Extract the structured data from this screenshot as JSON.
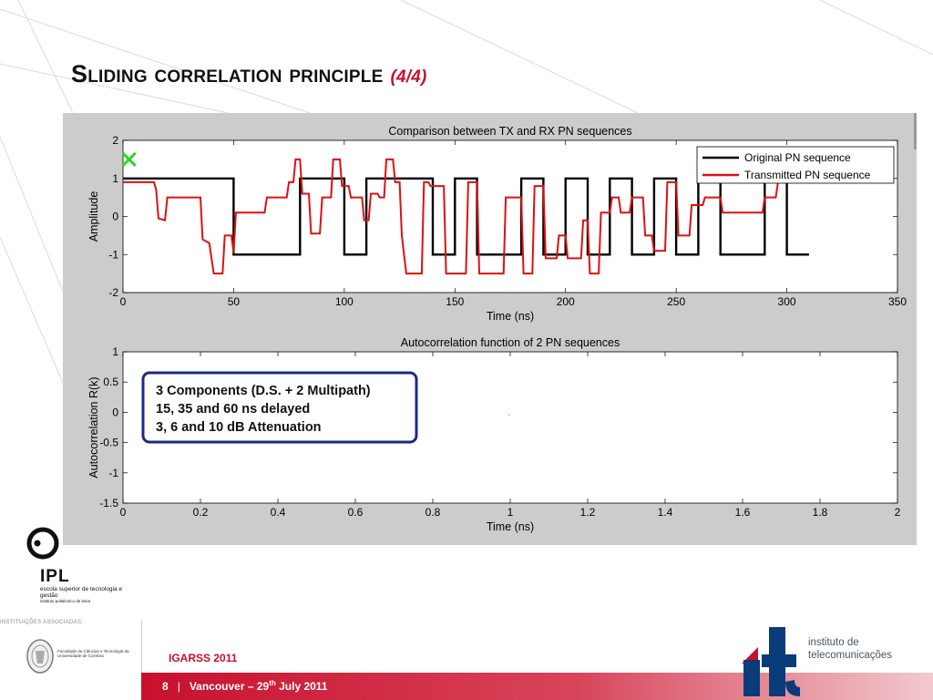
{
  "slide": {
    "title": "Sliding correlation principle",
    "subtitle": "(4/4)",
    "page_number": "8",
    "conference": "IGARSS 2011",
    "location_prefix": "Vancouver – 29",
    "date_sup": "th",
    "date_suffix": " July 2011"
  },
  "logos": {
    "ipl_name": "IPL",
    "ipl_subtitle": "escola superior de tecnologia e gestão",
    "ipl_subtitle2": "instituto politécnico de leiria",
    "associated_label": "INSTITUIÇÕES ASSOCIADAS:",
    "faculty_text": "Faculdade de Ciências e Tecnologia da Universidade de Coimbra",
    "it_name_line1": "instituto de",
    "it_name_line2": "telecomunicações"
  },
  "colors": {
    "accent_red": "#c8102e",
    "figure_bg": "#cccccc",
    "series_original": "#000000",
    "series_transmitted": "#dd1111",
    "marker": "#22dd22",
    "annotation_border": "#1a2a8a"
  },
  "chart_data": [
    {
      "type": "line",
      "title": "Comparison between TX and RX PN sequences",
      "xlabel": "Time (ns)",
      "ylabel": "Amplitude",
      "xlim": [
        0,
        350
      ],
      "ylim": [
        -2,
        2
      ],
      "xticks": [
        0,
        50,
        100,
        150,
        200,
        250,
        300,
        350
      ],
      "yticks": [
        -2,
        -1,
        0,
        1,
        2
      ],
      "legend_position": "top-right",
      "series": [
        {
          "name": "Original PN sequence",
          "color": "#000000",
          "points": [
            [
              0,
              1
            ],
            [
              50,
              1
            ],
            [
              50,
              -1
            ],
            [
              80,
              -1
            ],
            [
              80,
              1
            ],
            [
              100,
              1
            ],
            [
              100,
              -1
            ],
            [
              110,
              -1
            ],
            [
              110,
              1
            ],
            [
              140,
              1
            ],
            [
              140,
              -1
            ],
            [
              150,
              -1
            ],
            [
              150,
              1
            ],
            [
              160,
              1
            ],
            [
              160,
              -1
            ],
            [
              180,
              -1
            ],
            [
              180,
              1
            ],
            [
              190,
              1
            ],
            [
              190,
              -1
            ],
            [
              200,
              -1
            ],
            [
              200,
              1
            ],
            [
              210,
              1
            ],
            [
              210,
              -1
            ],
            [
              220,
              -1
            ],
            [
              220,
              1
            ],
            [
              230,
              1
            ],
            [
              230,
              -1
            ],
            [
              240,
              -1
            ],
            [
              240,
              1
            ],
            [
              250,
              1
            ],
            [
              250,
              -1
            ],
            [
              260,
              -1
            ],
            [
              260,
              1
            ],
            [
              270,
              1
            ],
            [
              270,
              -1
            ],
            [
              290,
              -1
            ],
            [
              290,
              1
            ],
            [
              300,
              1
            ],
            [
              300,
              -1
            ],
            [
              310,
              -1
            ]
          ]
        },
        {
          "name": "Transmitted PN sequence",
          "color": "#dd1111",
          "points": [
            [
              0,
              0.9
            ],
            [
              14,
              0.9
            ],
            [
              15,
              0.7
            ],
            [
              16,
              -0.05
            ],
            [
              19,
              -0.1
            ],
            [
              20,
              0.5
            ],
            [
              35,
              0.5
            ],
            [
              36,
              -0.6
            ],
            [
              39,
              -0.7
            ],
            [
              41,
              -1.5
            ],
            [
              45,
              -1.5
            ],
            [
              46,
              -0.5
            ],
            [
              49,
              -0.5
            ],
            [
              50,
              -0.95
            ],
            [
              51,
              0.1
            ],
            [
              64,
              0.1
            ],
            [
              65,
              0.5
            ],
            [
              74,
              0.5
            ],
            [
              75,
              0.9
            ],
            [
              77,
              0.9
            ],
            [
              78,
              1.5
            ],
            [
              80,
              1.5
            ],
            [
              81,
              0.6
            ],
            [
              84,
              0.6
            ],
            [
              85,
              -0.45
            ],
            [
              89,
              -0.45
            ],
            [
              90,
              0.5
            ],
            [
              94,
              0.5
            ],
            [
              95,
              1.5
            ],
            [
              98,
              1.5
            ],
            [
              99,
              0.8
            ],
            [
              102,
              0.8
            ],
            [
              103,
              0.5
            ],
            [
              108,
              0.5
            ],
            [
              109,
              -0.1
            ],
            [
              111,
              -0.1
            ],
            [
              112,
              0.6
            ],
            [
              115,
              0.6
            ],
            [
              116,
              0.5
            ],
            [
              118,
              0.5
            ],
            [
              119,
              1.5
            ],
            [
              122,
              1.5
            ],
            [
              123,
              0.9
            ],
            [
              125,
              0.9
            ],
            [
              126,
              -0.5
            ],
            [
              128,
              -1.5
            ],
            [
              135,
              -1.5
            ],
            [
              136,
              0.9
            ],
            [
              138,
              0.9
            ],
            [
              139,
              0.8
            ],
            [
              145,
              0.8
            ],
            [
              146,
              -1.5
            ],
            [
              155,
              -1.5
            ],
            [
              156,
              0.9
            ],
            [
              160,
              0.9
            ],
            [
              161,
              -1.5
            ],
            [
              172,
              -1.5
            ],
            [
              173,
              0.5
            ],
            [
              180,
              0.5
            ],
            [
              181,
              -1.5
            ],
            [
              185,
              -1.5
            ],
            [
              186,
              0.8
            ],
            [
              190,
              0.8
            ],
            [
              191,
              -1.1
            ],
            [
              196,
              -1.1
            ],
            [
              197,
              -0.5
            ],
            [
              200,
              -0.5
            ],
            [
              201,
              -1.1
            ],
            [
              207,
              -1.1
            ],
            [
              208,
              -0.1
            ],
            [
              210,
              -0.1
            ],
            [
              211,
              -1.5
            ],
            [
              215,
              -1.5
            ],
            [
              216,
              0.1
            ],
            [
              220,
              0.1
            ],
            [
              221,
              0.5
            ],
            [
              224,
              0.5
            ],
            [
              225,
              0.1
            ],
            [
              229,
              0.1
            ],
            [
              230,
              0.5
            ],
            [
              235,
              0.5
            ],
            [
              236,
              -0.5
            ],
            [
              239,
              -0.5
            ],
            [
              240,
              -0.9
            ],
            [
              245,
              -0.9
            ],
            [
              246,
              0.9
            ],
            [
              250,
              0.9
            ],
            [
              251,
              -0.5
            ],
            [
              256,
              -0.5
            ],
            [
              257,
              0.3
            ],
            [
              262,
              0.3
            ],
            [
              263,
              0.5
            ],
            [
              270,
              0.5
            ],
            [
              271,
              0.1
            ],
            [
              289,
              0.1
            ],
            [
              290,
              0.5
            ],
            [
              295,
              0.5
            ],
            [
              296,
              0.9
            ]
          ]
        }
      ],
      "annotations": [
        {
          "type": "marker",
          "symbol": "x",
          "x": 1.5,
          "y": 1.5,
          "color": "#22dd22"
        }
      ]
    },
    {
      "type": "line",
      "title": "Autocorrelation function of 2 PN sequences",
      "xlabel": "Time (ns)",
      "ylabel": "Autocorrelation R(k)",
      "xlim": [
        0,
        2
      ],
      "ylim": [
        -1.5,
        1
      ],
      "xticks": [
        0,
        0.2,
        0.4,
        0.6,
        0.8,
        1,
        1.2,
        1.4,
        1.6,
        1.8,
        2
      ],
      "yticks": [
        -1.5,
        -1,
        -0.5,
        0,
        0.5,
        1
      ],
      "series": [],
      "annotations": [
        {
          "type": "textbox",
          "lines": [
            "3 Components (D.S. + 2 Multipath)",
            "15, 35 and 60 ns delayed",
            "3, 6 and 10 dB Attenuation"
          ]
        }
      ]
    }
  ]
}
